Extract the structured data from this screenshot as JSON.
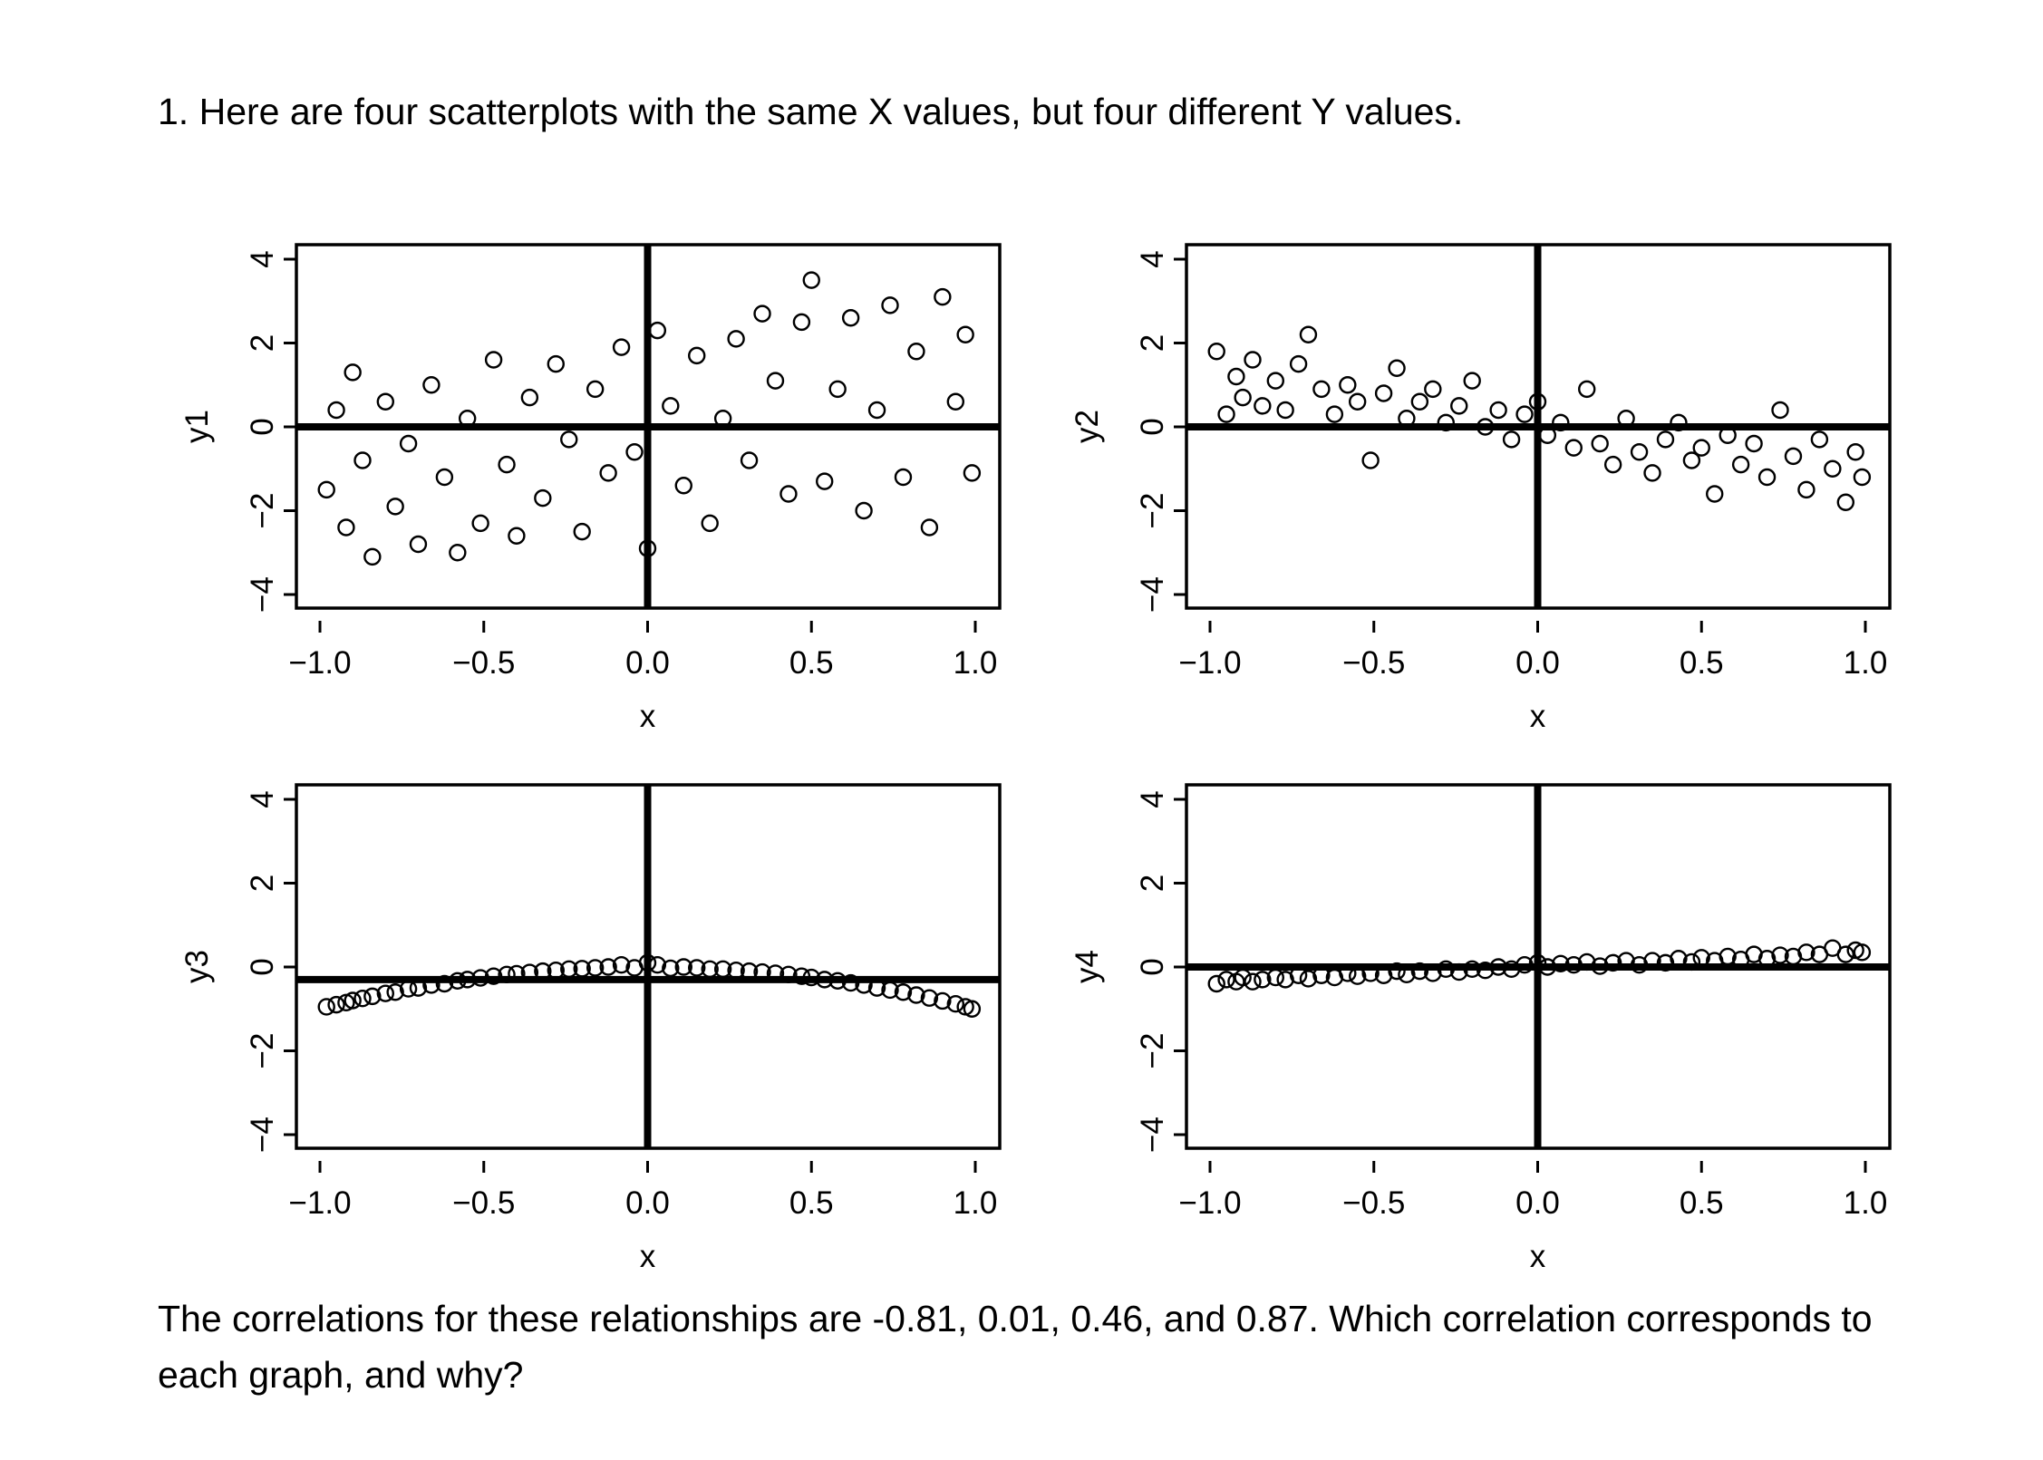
{
  "header": {
    "title": "1. Here are four scatterplots with the same X values, but four different Y values."
  },
  "footer": {
    "question": "The correlations for these relationships are -0.81, 0.01, 0.46, and 0.87. Which correlation corresponds to each graph, and why?"
  },
  "chart_data": [
    {
      "type": "scatter",
      "xlabel": "x",
      "ylabel": "y1",
      "xlim": [
        -1,
        1
      ],
      "ylim": [
        -4,
        4
      ],
      "xticks": [
        "−1.0",
        "−0.5",
        "0.0",
        "0.5",
        "1.0"
      ],
      "yticks": [
        "−4",
        "−2",
        "0",
        "2",
        "4"
      ],
      "reference_lines": {
        "vertical_x": 0,
        "horizontal_y": 0
      },
      "marker": "open-circle",
      "x": [
        -0.98,
        -0.95,
        -0.92,
        -0.9,
        -0.87,
        -0.84,
        -0.8,
        -0.77,
        -0.73,
        -0.7,
        -0.66,
        -0.62,
        -0.58,
        -0.55,
        -0.51,
        -0.47,
        -0.43,
        -0.4,
        -0.36,
        -0.32,
        -0.28,
        -0.24,
        -0.2,
        -0.16,
        -0.12,
        -0.08,
        -0.04,
        0,
        0.03,
        0.07,
        0.11,
        0.15,
        0.19,
        0.23,
        0.27,
        0.31,
        0.35,
        0.39,
        0.43,
        0.47,
        0.5,
        0.54,
        0.58,
        0.62,
        0.66,
        0.7,
        0.74,
        0.78,
        0.82,
        0.86,
        0.9,
        0.94,
        0.97,
        0.99
      ],
      "y": [
        -1.5,
        0.4,
        -2.4,
        1.3,
        -0.8,
        -3.1,
        0.6,
        -1.9,
        -0.4,
        -2.8,
        1.0,
        -1.2,
        -3.0,
        0.2,
        -2.3,
        1.6,
        -0.9,
        -2.6,
        0.7,
        -1.7,
        1.5,
        -0.3,
        -2.5,
        0.9,
        -1.1,
        1.9,
        -0.6,
        -2.9,
        2.3,
        0.5,
        -1.4,
        1.7,
        -2.3,
        0.2,
        2.1,
        -0.8,
        2.7,
        1.1,
        -1.6,
        2.5,
        3.5,
        -1.3,
        0.9,
        2.6,
        -2.0,
        0.4,
        2.9,
        -1.2,
        1.8,
        -2.4,
        3.1,
        0.6,
        2.2,
        -1.1
      ]
    },
    {
      "type": "scatter",
      "xlabel": "x",
      "ylabel": "y2",
      "xlim": [
        -1,
        1
      ],
      "ylim": [
        -4,
        4
      ],
      "xticks": [
        "−1.0",
        "−0.5",
        "0.0",
        "0.5",
        "1.0"
      ],
      "yticks": [
        "−4",
        "−2",
        "0",
        "2",
        "4"
      ],
      "reference_lines": {
        "vertical_x": 0,
        "horizontal_y": 0
      },
      "marker": "open-circle",
      "x": [
        -0.98,
        -0.95,
        -0.92,
        -0.9,
        -0.87,
        -0.84,
        -0.8,
        -0.77,
        -0.73,
        -0.7,
        -0.66,
        -0.62,
        -0.58,
        -0.55,
        -0.51,
        -0.47,
        -0.43,
        -0.4,
        -0.36,
        -0.32,
        -0.28,
        -0.24,
        -0.2,
        -0.16,
        -0.12,
        -0.08,
        -0.04,
        0,
        0.03,
        0.07,
        0.11,
        0.15,
        0.19,
        0.23,
        0.27,
        0.31,
        0.35,
        0.39,
        0.43,
        0.47,
        0.5,
        0.54,
        0.58,
        0.62,
        0.66,
        0.7,
        0.74,
        0.78,
        0.82,
        0.86,
        0.9,
        0.94,
        0.97,
        0.99
      ],
      "y": [
        1.8,
        0.3,
        1.2,
        0.7,
        1.6,
        0.5,
        1.1,
        0.4,
        1.5,
        2.2,
        0.9,
        0.3,
        1.0,
        0.6,
        -0.8,
        0.8,
        1.4,
        0.2,
        0.6,
        0.9,
        0.1,
        0.5,
        1.1,
        0.0,
        0.4,
        -0.3,
        0.3,
        0.6,
        -0.2,
        0.1,
        -0.5,
        0.9,
        -0.4,
        -0.9,
        0.2,
        -0.6,
        -1.1,
        -0.3,
        0.1,
        -0.8,
        -0.5,
        -1.6,
        -0.2,
        -0.9,
        -0.4,
        -1.2,
        0.4,
        -0.7,
        -1.5,
        -0.3,
        -1.0,
        -1.8,
        -0.6,
        -1.2
      ]
    },
    {
      "type": "scatter",
      "xlabel": "x",
      "ylabel": "y3",
      "xlim": [
        -1,
        1
      ],
      "ylim": [
        -4,
        4
      ],
      "xticks": [
        "−1.0",
        "−0.5",
        "0.0",
        "0.5",
        "1.0"
      ],
      "yticks": [
        "−4",
        "−2",
        "0",
        "2",
        "4"
      ],
      "reference_lines": {
        "vertical_x": 0,
        "horizontal_y": -0.3
      },
      "marker": "open-circle",
      "x": [
        -0.98,
        -0.95,
        -0.92,
        -0.9,
        -0.87,
        -0.84,
        -0.8,
        -0.77,
        -0.73,
        -0.7,
        -0.66,
        -0.62,
        -0.58,
        -0.55,
        -0.51,
        -0.47,
        -0.43,
        -0.4,
        -0.36,
        -0.32,
        -0.28,
        -0.24,
        -0.2,
        -0.16,
        -0.12,
        -0.08,
        -0.04,
        0,
        0.03,
        0.07,
        0.11,
        0.15,
        0.19,
        0.23,
        0.27,
        0.31,
        0.35,
        0.39,
        0.43,
        0.47,
        0.5,
        0.54,
        0.58,
        0.62,
        0.66,
        0.7,
        0.74,
        0.78,
        0.82,
        0.86,
        0.9,
        0.94,
        0.97,
        0.99
      ],
      "y": [
        -0.95,
        -0.9,
        -0.85,
        -0.8,
        -0.75,
        -0.7,
        -0.63,
        -0.6,
        -0.52,
        -0.5,
        -0.43,
        -0.4,
        -0.33,
        -0.3,
        -0.26,
        -0.22,
        -0.18,
        -0.16,
        -0.13,
        -0.1,
        -0.08,
        -0.05,
        -0.04,
        -0.02,
        0.0,
        0.05,
        -0.02,
        0.1,
        0.05,
        -0.03,
        0.0,
        -0.02,
        -0.05,
        -0.05,
        -0.08,
        -0.1,
        -0.12,
        -0.15,
        -0.18,
        -0.22,
        -0.25,
        -0.3,
        -0.33,
        -0.38,
        -0.43,
        -0.5,
        -0.55,
        -0.6,
        -0.67,
        -0.74,
        -0.81,
        -0.88,
        -0.95,
        -1.0
      ]
    },
    {
      "type": "scatter",
      "xlabel": "x",
      "ylabel": "y4",
      "xlim": [
        -1,
        1
      ],
      "ylim": [
        -4,
        4
      ],
      "xticks": [
        "−1.0",
        "−0.5",
        "0.0",
        "0.5",
        "1.0"
      ],
      "yticks": [
        "−4",
        "−2",
        "0",
        "2",
        "4"
      ],
      "reference_lines": {
        "vertical_x": 0,
        "horizontal_y": 0
      },
      "marker": "open-circle",
      "x": [
        -0.98,
        -0.95,
        -0.92,
        -0.9,
        -0.87,
        -0.84,
        -0.8,
        -0.77,
        -0.73,
        -0.7,
        -0.66,
        -0.62,
        -0.58,
        -0.55,
        -0.51,
        -0.47,
        -0.43,
        -0.4,
        -0.36,
        -0.32,
        -0.28,
        -0.24,
        -0.2,
        -0.16,
        -0.12,
        -0.08,
        -0.04,
        0,
        0.03,
        0.07,
        0.11,
        0.15,
        0.19,
        0.23,
        0.27,
        0.31,
        0.35,
        0.39,
        0.43,
        0.47,
        0.5,
        0.54,
        0.58,
        0.62,
        0.66,
        0.7,
        0.74,
        0.78,
        0.82,
        0.86,
        0.9,
        0.94,
        0.97,
        0.99
      ],
      "y": [
        -0.4,
        -0.3,
        -0.35,
        -0.25,
        -0.35,
        -0.3,
        -0.25,
        -0.3,
        -0.2,
        -0.28,
        -0.2,
        -0.25,
        -0.15,
        -0.22,
        -0.15,
        -0.2,
        -0.1,
        -0.18,
        -0.1,
        -0.15,
        -0.05,
        -0.12,
        -0.05,
        -0.08,
        0.0,
        -0.05,
        0.05,
        0.1,
        0.0,
        0.08,
        0.05,
        0.12,
        0.02,
        0.1,
        0.15,
        0.05,
        0.15,
        0.1,
        0.2,
        0.12,
        0.22,
        0.15,
        0.25,
        0.18,
        0.3,
        0.2,
        0.28,
        0.25,
        0.35,
        0.3,
        0.45,
        0.3,
        0.4,
        0.35
      ]
    }
  ]
}
